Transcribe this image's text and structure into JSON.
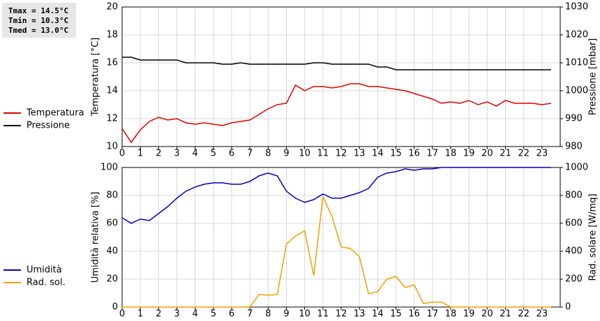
{
  "stats": [
    "Tmax = 14.5°C",
    "Tmin = 10.3°C",
    "Tmed = 13.0°C"
  ],
  "chart_data": [
    {
      "type": "line",
      "ylabel": "Temperatura [°C]",
      "y2label": "Pressione [mbar]",
      "x": [
        0,
        0.5,
        1,
        1.5,
        2,
        2.5,
        3,
        3.5,
        4,
        4.5,
        5,
        5.5,
        6,
        6.5,
        7,
        7.5,
        8,
        8.5,
        9,
        9.5,
        10,
        10.5,
        11,
        11.5,
        12,
        12.5,
        13,
        13.5,
        14,
        14.5,
        15,
        15.5,
        16,
        16.5,
        17,
        17.5,
        18,
        18.5,
        19,
        19.5,
        20,
        20.5,
        21,
        21.5,
        22,
        22.5,
        23,
        23.5
      ],
      "xlim": [
        0,
        24
      ],
      "xticks": [
        0,
        1,
        2,
        3,
        4,
        5,
        6,
        7,
        8,
        9,
        10,
        11,
        12,
        13,
        14,
        15,
        16,
        17,
        18,
        19,
        20,
        21,
        22,
        23
      ],
      "ylim": [
        10,
        20
      ],
      "yticks": [
        10,
        12,
        14,
        16,
        18,
        20
      ],
      "y2lim": [
        980,
        1030
      ],
      "y2ticks": [
        980,
        990,
        1000,
        1010,
        1020,
        1030
      ],
      "grid": true,
      "series": [
        {
          "name": "Temperatura",
          "color": "#dd0000",
          "values": [
            11.3,
            10.3,
            11.2,
            11.8,
            12.1,
            11.9,
            12.0,
            11.7,
            11.6,
            11.7,
            11.6,
            11.5,
            11.7,
            11.8,
            11.9,
            12.3,
            12.7,
            13.0,
            13.1,
            14.4,
            14.0,
            14.3,
            14.3,
            14.2,
            14.3,
            14.5,
            14.5,
            14.3,
            14.3,
            14.2,
            14.1,
            14.0,
            13.8,
            13.6,
            13.4,
            13.1,
            13.2,
            13.1,
            13.3,
            13.0,
            13.2,
            12.9,
            13.3,
            13.1,
            13.1,
            13.1,
            13.0,
            13.1
          ]
        },
        {
          "name": "Pressione",
          "color": "#000000",
          "axis": "y2",
          "values": [
            1012,
            1012,
            1011,
            1011,
            1011,
            1011,
            1011,
            1010,
            1010,
            1010,
            1010,
            1009.5,
            1009.5,
            1010,
            1009.5,
            1009.5,
            1009.5,
            1009.5,
            1009.5,
            1009.5,
            1009.5,
            1010,
            1010,
            1009.5,
            1009.5,
            1009.5,
            1009.5,
            1009.5,
            1008.5,
            1008.5,
            1007.5,
            1007.5,
            1007.5,
            1007.5,
            1007.5,
            1007.5,
            1007.5,
            1007.5,
            1007.5,
            1007.5,
            1007.5,
            1007.5,
            1007.5,
            1007.5,
            1007.5,
            1007.5,
            1007.5,
            1007.5
          ]
        }
      ]
    },
    {
      "type": "line",
      "ylabel": "Umidità relativa [%]",
      "y2label": "Rad. solare [W/mq]",
      "x": [
        0,
        0.5,
        1,
        1.5,
        2,
        2.5,
        3,
        3.5,
        4,
        4.5,
        5,
        5.5,
        6,
        6.5,
        7,
        7.5,
        8,
        8.5,
        9,
        9.5,
        10,
        10.5,
        11,
        11.5,
        12,
        12.5,
        13,
        13.5,
        14,
        14.5,
        15,
        15.5,
        16,
        16.5,
        17,
        17.5,
        18,
        18.5,
        19,
        19.5,
        20,
        20.5,
        21,
        21.5,
        22,
        22.5,
        23,
        23.5
      ],
      "xlim": [
        0,
        24
      ],
      "xticks": [
        0,
        1,
        2,
        3,
        4,
        5,
        6,
        7,
        8,
        9,
        10,
        11,
        12,
        13,
        14,
        15,
        16,
        17,
        18,
        19,
        20,
        21,
        22,
        23
      ],
      "ylim": [
        0,
        100
      ],
      "yticks": [
        0,
        20,
        40,
        60,
        80,
        100
      ],
      "y2lim": [
        0,
        1000
      ],
      "y2ticks": [
        0,
        200,
        400,
        600,
        800,
        1000
      ],
      "grid": true,
      "series": [
        {
          "name": "Umidità",
          "color": "#0000bb",
          "values": [
            64,
            60,
            63,
            62,
            67,
            72,
            78,
            83,
            86,
            88,
            89,
            89,
            88,
            88,
            90,
            94,
            96,
            94,
            83,
            78,
            75,
            77,
            81,
            78,
            78,
            80,
            82,
            85,
            93,
            96,
            97,
            99,
            98,
            99,
            99,
            100,
            100,
            100,
            100,
            100,
            100,
            100,
            100,
            100,
            100,
            100,
            100,
            100
          ]
        },
        {
          "name": "Rad. sol.",
          "color": "#f0a000",
          "axis": "y2",
          "values": [
            0,
            0,
            0,
            0,
            0,
            0,
            0,
            0,
            0,
            0,
            0,
            0,
            0,
            0,
            0,
            90,
            85,
            90,
            450,
            510,
            545,
            225,
            790,
            650,
            430,
            420,
            360,
            95,
            110,
            200,
            220,
            140,
            160,
            25,
            35,
            35,
            0,
            0,
            0,
            0,
            0,
            0,
            0,
            0,
            0,
            0,
            0,
            0
          ]
        }
      ]
    }
  ]
}
